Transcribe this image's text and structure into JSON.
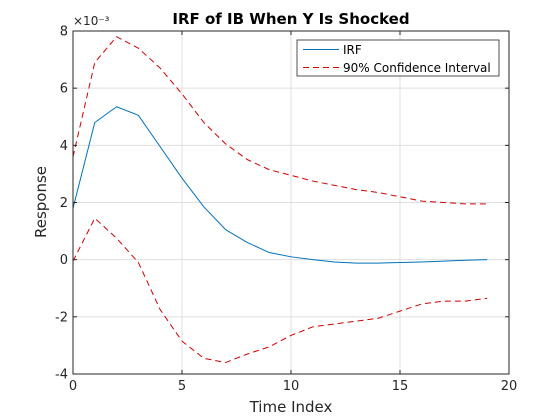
{
  "chart_data": {
    "type": "line",
    "title": "IRF of IB When Y Is Shocked",
    "xlabel": "Time Index",
    "ylabel": "Response",
    "y_exponent_label": "×10⁻³",
    "y_scale_factor": 0.001,
    "xlim": [
      0,
      20
    ],
    "ylim": [
      -4,
      8
    ],
    "xticks": [
      0,
      5,
      10,
      15,
      20
    ],
    "yticks": [
      -4,
      -2,
      0,
      2,
      4,
      6,
      8
    ],
    "grid": true,
    "legend_location": "top-right",
    "x": [
      0,
      1,
      2,
      3,
      4,
      5,
      6,
      7,
      8,
      9,
      10,
      11,
      12,
      13,
      14,
      15,
      16,
      17,
      18,
      19
    ],
    "series": [
      {
        "name": "IRF",
        "color": "#0072BD",
        "style": "solid",
        "values": [
          1.8,
          4.8,
          5.35,
          5.05,
          3.95,
          2.85,
          1.85,
          1.05,
          0.6,
          0.25,
          0.1,
          0.0,
          -0.08,
          -0.12,
          -0.12,
          -0.1,
          -0.08,
          -0.05,
          -0.02,
          0.0
        ]
      },
      {
        "name": "90% Confidence Interval",
        "color": "#D00000",
        "style": "dashed",
        "values": [
          3.6,
          6.9,
          7.8,
          7.4,
          6.7,
          5.8,
          4.8,
          4.05,
          3.5,
          3.15,
          2.95,
          2.75,
          2.6,
          2.45,
          2.35,
          2.2,
          2.05,
          2.0,
          1.95,
          1.95
        ]
      },
      {
        "name": "",
        "color": "#D00000",
        "style": "dashed",
        "values": [
          -0.05,
          1.45,
          0.75,
          -0.1,
          -1.75,
          -2.85,
          -3.45,
          -3.6,
          -3.3,
          -3.05,
          -2.65,
          -2.35,
          -2.25,
          -2.15,
          -2.05,
          -1.8,
          -1.55,
          -1.45,
          -1.45,
          -1.35
        ]
      }
    ]
  }
}
